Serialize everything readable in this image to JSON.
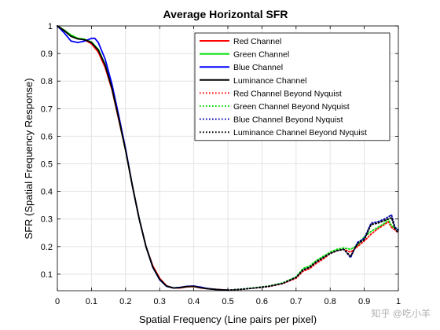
{
  "chart_data": {
    "type": "line",
    "title": "Average Horizontal SFR",
    "xlabel": "Spatial Frequency (Line pairs per pixel)",
    "ylabel": "SFR (Spatial Frequency Response)",
    "xlim": [
      0,
      1
    ],
    "ylim": [
      0.04,
      1.0
    ],
    "xticks": [
      "0",
      "0.1",
      "0.2",
      "0.3",
      "0.4",
      "0.5",
      "0.6",
      "0.7",
      "0.8",
      "0.9",
      "1"
    ],
    "yticks": [
      "0.1",
      "0.2",
      "0.3",
      "0.4",
      "0.5",
      "0.6",
      "0.7",
      "0.8",
      "0.9",
      "1"
    ],
    "grid": true,
    "legend_position": "top-right",
    "series": [
      {
        "name": "Red Channel",
        "color": "#ff0000",
        "style": "solid",
        "x": [
          0,
          0.02,
          0.04,
          0.06,
          0.08,
          0.1,
          0.12,
          0.14,
          0.16,
          0.18,
          0.2,
          0.22,
          0.24,
          0.26,
          0.28,
          0.3,
          0.32,
          0.34,
          0.36,
          0.38,
          0.4,
          0.42,
          0.44,
          0.46,
          0.48,
          0.5
        ],
        "y": [
          1.0,
          0.985,
          0.965,
          0.955,
          0.95,
          0.935,
          0.905,
          0.85,
          0.77,
          0.66,
          0.55,
          0.42,
          0.3,
          0.2,
          0.13,
          0.085,
          0.058,
          0.05,
          0.05,
          0.054,
          0.055,
          0.05,
          0.047,
          0.045,
          0.044,
          0.042
        ]
      },
      {
        "name": "Green Channel",
        "color": "#00dd00",
        "style": "solid",
        "x": [
          0,
          0.02,
          0.04,
          0.06,
          0.08,
          0.1,
          0.12,
          0.14,
          0.16,
          0.18,
          0.2,
          0.22,
          0.24,
          0.26,
          0.28,
          0.3,
          0.32,
          0.34,
          0.36,
          0.38,
          0.4,
          0.42,
          0.44,
          0.46,
          0.48,
          0.5
        ],
        "y": [
          1.0,
          0.985,
          0.967,
          0.955,
          0.952,
          0.942,
          0.915,
          0.86,
          0.775,
          0.665,
          0.55,
          0.42,
          0.3,
          0.2,
          0.125,
          0.08,
          0.056,
          0.05,
          0.052,
          0.055,
          0.056,
          0.051,
          0.048,
          0.045,
          0.043,
          0.042
        ]
      },
      {
        "name": "Blue Channel",
        "color": "#0000ff",
        "style": "solid",
        "x": [
          0,
          0.02,
          0.04,
          0.06,
          0.08,
          0.1,
          0.11,
          0.12,
          0.14,
          0.16,
          0.18,
          0.2,
          0.22,
          0.24,
          0.26,
          0.28,
          0.3,
          0.32,
          0.34,
          0.36,
          0.38,
          0.4,
          0.42,
          0.44,
          0.46,
          0.48,
          0.5
        ],
        "y": [
          1.0,
          0.975,
          0.945,
          0.94,
          0.945,
          0.955,
          0.955,
          0.94,
          0.88,
          0.79,
          0.675,
          0.555,
          0.42,
          0.3,
          0.2,
          0.125,
          0.08,
          0.056,
          0.05,
          0.052,
          0.056,
          0.057,
          0.053,
          0.048,
          0.045,
          0.043,
          0.042
        ]
      },
      {
        "name": "Luminance Channel",
        "color": "#000000",
        "style": "solid",
        "x": [
          0,
          0.02,
          0.04,
          0.06,
          0.08,
          0.1,
          0.12,
          0.14,
          0.16,
          0.18,
          0.2,
          0.22,
          0.24,
          0.26,
          0.28,
          0.3,
          0.32,
          0.34,
          0.36,
          0.38,
          0.4,
          0.42,
          0.44,
          0.46,
          0.48,
          0.5
        ],
        "y": [
          1.0,
          0.983,
          0.962,
          0.953,
          0.95,
          0.94,
          0.912,
          0.858,
          0.775,
          0.665,
          0.55,
          0.42,
          0.3,
          0.2,
          0.126,
          0.082,
          0.057,
          0.05,
          0.051,
          0.055,
          0.056,
          0.051,
          0.047,
          0.045,
          0.043,
          0.042
        ]
      },
      {
        "name": "Red Channel Beyond Nyquist",
        "color": "#ff0000",
        "style": "dotted",
        "x": [
          0.5,
          0.54,
          0.58,
          0.62,
          0.66,
          0.7,
          0.72,
          0.74,
          0.76,
          0.78,
          0.8,
          0.82,
          0.84,
          0.86,
          0.88,
          0.9,
          0.92,
          0.94,
          0.96,
          0.97,
          0.98,
          1.0
        ],
        "y": [
          0.042,
          0.045,
          0.05,
          0.055,
          0.065,
          0.085,
          0.11,
          0.12,
          0.14,
          0.155,
          0.175,
          0.185,
          0.19,
          0.18,
          0.2,
          0.22,
          0.245,
          0.265,
          0.28,
          0.29,
          0.27,
          0.25
        ]
      },
      {
        "name": "Green Channel Beyond Nyquist",
        "color": "#00dd00",
        "style": "dotted",
        "x": [
          0.5,
          0.54,
          0.58,
          0.62,
          0.66,
          0.7,
          0.72,
          0.74,
          0.76,
          0.78,
          0.8,
          0.82,
          0.84,
          0.86,
          0.88,
          0.9,
          0.92,
          0.94,
          0.96,
          0.97,
          0.98,
          1.0
        ],
        "y": [
          0.042,
          0.046,
          0.051,
          0.057,
          0.068,
          0.09,
          0.12,
          0.13,
          0.15,
          0.165,
          0.18,
          0.19,
          0.195,
          0.19,
          0.205,
          0.235,
          0.255,
          0.27,
          0.285,
          0.3,
          0.275,
          0.26
        ]
      },
      {
        "name": "Blue Channel Beyond Nyquist",
        "color": "#0000aa",
        "style": "dotted",
        "x": [
          0.5,
          0.54,
          0.58,
          0.62,
          0.66,
          0.7,
          0.72,
          0.74,
          0.76,
          0.78,
          0.8,
          0.82,
          0.84,
          0.86,
          0.88,
          0.9,
          0.92,
          0.94,
          0.96,
          0.98,
          0.99,
          1.0
        ],
        "y": [
          0.042,
          0.045,
          0.05,
          0.056,
          0.066,
          0.088,
          0.115,
          0.125,
          0.145,
          0.16,
          0.175,
          0.185,
          0.19,
          0.16,
          0.215,
          0.23,
          0.285,
          0.29,
          0.3,
          0.315,
          0.27,
          0.26
        ]
      },
      {
        "name": "Luminance Channel Beyond Nyquist",
        "color": "#000000",
        "style": "dotted",
        "x": [
          0.5,
          0.54,
          0.58,
          0.62,
          0.66,
          0.7,
          0.72,
          0.74,
          0.76,
          0.78,
          0.8,
          0.82,
          0.84,
          0.86,
          0.88,
          0.9,
          0.92,
          0.94,
          0.96,
          0.98,
          0.99,
          1.0
        ],
        "y": [
          0.042,
          0.045,
          0.05,
          0.056,
          0.066,
          0.088,
          0.115,
          0.125,
          0.145,
          0.16,
          0.175,
          0.185,
          0.19,
          0.165,
          0.21,
          0.225,
          0.28,
          0.285,
          0.295,
          0.305,
          0.265,
          0.25
        ]
      }
    ]
  },
  "watermark": {
    "text": "知乎 @吃小羊"
  }
}
